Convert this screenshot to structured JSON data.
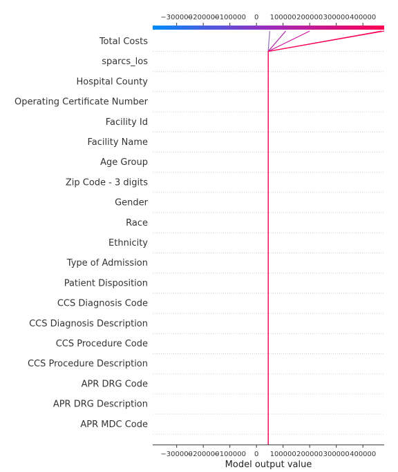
{
  "chart_data": {
    "type": "line",
    "title": "",
    "xlabel": "Model output value",
    "ylabel": "",
    "xlim": [
      -390000,
      480000
    ],
    "xticks": [
      -300000,
      -200000,
      -100000,
      0,
      100000,
      200000,
      300000,
      400000
    ],
    "xtick_labels": [
      "−300000",
      "−200000",
      "−100000",
      "0",
      "100000",
      "200000",
      "300000",
      "400000"
    ],
    "base_value": 44000,
    "features": [
      "Total Costs",
      "sparcs_los",
      "Hospital County",
      "Operating Certificate Number",
      "Facility Id",
      "Facility Name",
      "Age Group",
      "Zip Code - 3 digits",
      "Gender",
      "Race",
      "Ethnicity",
      "Type of Admission",
      "Patient Disposition",
      "CCS Diagnosis Code",
      "CCS Diagnosis Description",
      "CCS Procedure Code",
      "CCS Procedure Description",
      "APR DRG Code",
      "APR DRG Description",
      "APR MDC Code"
    ],
    "series": [
      {
        "output": 50000,
        "path": [
          44000,
          44000,
          44000,
          44000,
          44000,
          44000,
          44000,
          44000,
          44000,
          44000,
          44000,
          44000,
          44000,
          44000,
          44000,
          44000,
          44000,
          44000,
          44000,
          44000,
          50000
        ],
        "color": "#8c6db5"
      },
      {
        "output": 110000,
        "path": [
          44000,
          44000,
          44000,
          44000,
          44000,
          44000,
          44000,
          44000,
          44000,
          44000,
          44000,
          44000,
          44000,
          44000,
          44000,
          44000,
          44000,
          44000,
          44000,
          44000,
          110000
        ],
        "color": "#b01ea8"
      },
      {
        "output": 200000,
        "path": [
          44000,
          44000,
          44000,
          44000,
          44000,
          44000,
          44000,
          44000,
          44000,
          44000,
          44000,
          44000,
          44000,
          44000,
          44000,
          44000,
          44000,
          44000,
          44000,
          44000,
          200000
        ],
        "color": "#cc14a0"
      },
      {
        "output": 470000,
        "path": [
          44000,
          44000,
          44000,
          44000,
          44000,
          44000,
          44000,
          44000,
          44000,
          44000,
          44000,
          44000,
          44000,
          44000,
          44000,
          44000,
          44000,
          44000,
          44000,
          44000,
          470000
        ],
        "color": "#e8106a"
      },
      {
        "output": 480000,
        "path": [
          44000,
          44000,
          44000,
          44000,
          44000,
          44000,
          44000,
          44000,
          44000,
          44000,
          44000,
          44000,
          44000,
          44000,
          44000,
          44000,
          44000,
          44000,
          44000,
          44000,
          480000
        ],
        "color": "#ff0050"
      }
    ],
    "colorbar": {
      "low_color": "#008bfb",
      "mid_color": "#9c2bbd",
      "high_color": "#ff0052"
    },
    "grid": "horizontal-dotted",
    "legend": "none"
  }
}
